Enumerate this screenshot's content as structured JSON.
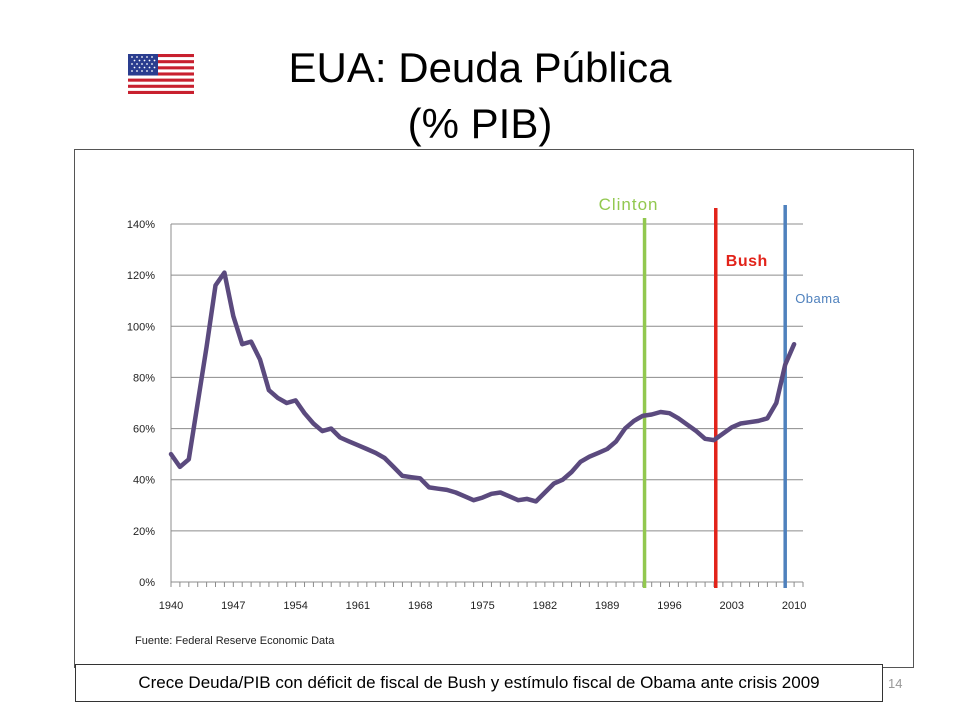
{
  "slide": {
    "title_line1": "EUA: Deuda Pública",
    "title_line2": "(% PIB)",
    "caption": "Crece Deuda/PIB con déficit de fiscal de Bush y estímulo fiscal de Obama ante crisis 2009",
    "page_number": "14",
    "flag_icon": "us-flag-icon"
  },
  "chart_data": {
    "type": "line",
    "title": "",
    "xlabel": "",
    "ylabel": "",
    "ylim": [
      0,
      140
    ],
    "xlim": [
      1940,
      2011
    ],
    "y_ticks": [
      0,
      20,
      40,
      60,
      80,
      100,
      120,
      140
    ],
    "y_tick_labels": [
      "0%",
      "20%",
      "40%",
      "60%",
      "80%",
      "100%",
      "120%",
      "140%"
    ],
    "x_ticks": [
      1940,
      1947,
      1954,
      1961,
      1968,
      1975,
      1982,
      1989,
      1996,
      2003,
      2010
    ],
    "x_tick_labels": [
      "1940",
      "1947",
      "1954",
      "1961",
      "1968",
      "1975",
      "1982",
      "1989",
      "1996",
      "2003",
      "2010"
    ],
    "grid": true,
    "line_color": "#5b4a7e",
    "series": [
      {
        "x": [
          1940,
          1941,
          1942,
          1943,
          1944,
          1945,
          1946,
          1947,
          1948,
          1949,
          1950,
          1951,
          1952,
          1953,
          1954,
          1955,
          1956,
          1957,
          1958,
          1959,
          1960,
          1961,
          1962,
          1963,
          1964,
          1965,
          1966,
          1967,
          1968,
          1969,
          1970,
          1971,
          1972,
          1973,
          1974,
          1975,
          1976,
          1977,
          1978,
          1979,
          1980,
          1981,
          1982,
          1983,
          1984,
          1985,
          1986,
          1987,
          1988,
          1989,
          1990,
          1991,
          1992,
          1993,
          1994,
          1995,
          1996,
          1997,
          1998,
          1999,
          2000,
          2001,
          2002,
          2003,
          2004,
          2005,
          2006,
          2007,
          2008,
          2009,
          2010
        ],
        "values": [
          50,
          45,
          48,
          70,
          92,
          116,
          121,
          104,
          93,
          94,
          87,
          75,
          72,
          70,
          71,
          66,
          62,
          59,
          60,
          56.5,
          55,
          53.5,
          52,
          50.5,
          48.5,
          45,
          41.5,
          41,
          40.5,
          37,
          36.5,
          36,
          35,
          33.5,
          32,
          33,
          34.5,
          35,
          33.5,
          32,
          32.5,
          31.5,
          35,
          38.5,
          40,
          43,
          47,
          49,
          50.5,
          52,
          55,
          60,
          63,
          65,
          65.5,
          66.5,
          66,
          64,
          61.5,
          59,
          56,
          55.5,
          58,
          60.5,
          62,
          62.5,
          63,
          64,
          70,
          85,
          93
        ]
      }
    ],
    "markers": [
      {
        "label": "Clinton",
        "x": 1993.2,
        "color": "#92c84f"
      },
      {
        "label": "Bush",
        "x": 2001.2,
        "color": "#e2231a"
      },
      {
        "label": "Obama",
        "x": 2009.0,
        "color": "#4f81bd"
      }
    ],
    "source": "Fuente: Federal Reserve Economic Data"
  }
}
